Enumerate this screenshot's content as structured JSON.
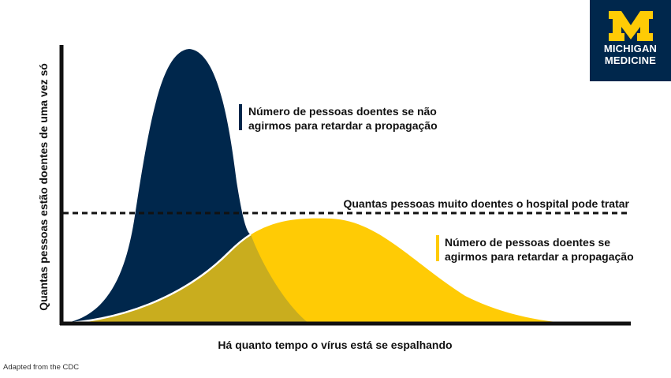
{
  "colors": {
    "no_action": "#00274c",
    "with_action": "#ffcb05",
    "overlap": "#c9ad1e",
    "capacity_line": "#111111",
    "axis": "#111111"
  },
  "logo": {
    "icon": "block-m-icon",
    "line1": "MICHIGAN",
    "line2": "MEDICINE"
  },
  "source_note": "Adapted from the CDC",
  "chart_data": {
    "type": "area",
    "title": "",
    "xlabel": "Há quanto tempo o vírus está se espalhando",
    "ylabel": "Quantas pessoas estão doentes de uma vez só",
    "x_ticks": false,
    "y_ticks": false,
    "grid": false,
    "xlim": [
      0,
      100
    ],
    "ylim": [
      0,
      100
    ],
    "series": [
      {
        "name": "Número de pessoas doentes se não agirmos para retardar a propagação",
        "name_lines": [
          "Número de pessoas doentes se não",
          "agirmos para retardar a propagação"
        ],
        "color": "#00274c",
        "peak": 99
      },
      {
        "name": "Número de pessoas doentes se agirmos para retardar a propagação",
        "name_lines": [
          "Número de pessoas doentes se",
          "agirmos para retardar a propagação"
        ],
        "color": "#ffcb05",
        "peak": 38
      }
    ],
    "threshold": {
      "label": "Quantas pessoas muito doentes o hospital pode tratar",
      "value": 40,
      "style": "dashed"
    }
  }
}
